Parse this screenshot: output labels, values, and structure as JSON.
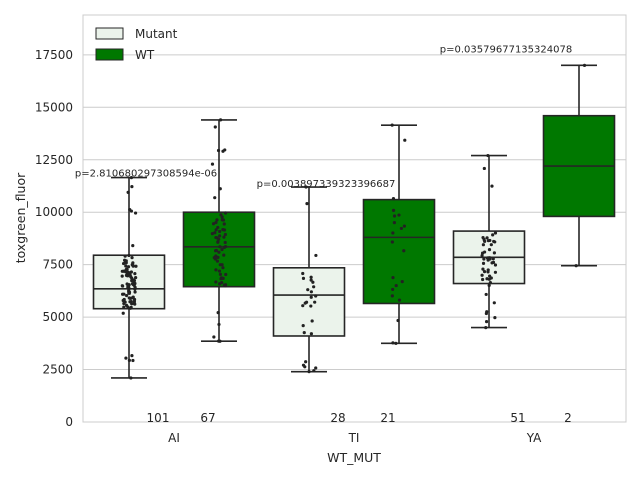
{
  "chart_data": {
    "type": "box",
    "xlabel": "WT_MUT",
    "ylabel": "toxgreen_fluor",
    "ylim": [
      0,
      19400
    ],
    "yticks": [
      0,
      2500,
      5000,
      7500,
      10000,
      12500,
      15000,
      17500
    ],
    "grid": true,
    "legend_position": "top-left",
    "categories": [
      "AI",
      "TI",
      "YA"
    ],
    "series": [
      {
        "name": "Mutant",
        "color": "#ebf3eb",
        "boxes": [
          {
            "whisker_low": 2100,
            "q1": 5400,
            "median": 6350,
            "q3": 7950,
            "whisker_high": 11650
          },
          {
            "whisker_low": 2400,
            "q1": 4100,
            "median": 6050,
            "q3": 7350,
            "whisker_high": 11200
          },
          {
            "whisker_low": 4500,
            "q1": 6600,
            "median": 7850,
            "q3": 9100,
            "whisker_high": 12700
          }
        ]
      },
      {
        "name": "WT",
        "color": "#007800",
        "boxes": [
          {
            "whisker_low": 3850,
            "q1": 6450,
            "median": 8350,
            "q3": 10000,
            "whisker_high": 14400
          },
          {
            "whisker_low": 3750,
            "q1": 5650,
            "median": 8800,
            "q3": 10600,
            "whisker_high": 14150
          },
          {
            "whisker_low": 7450,
            "q1": 9800,
            "median": 12200,
            "q3": 14600,
            "whisker_high": 17000
          }
        ]
      }
    ],
    "counts": [
      {
        "category": "AI",
        "mutant": "101",
        "wt": "67"
      },
      {
        "category": "TI",
        "mutant": "28",
        "wt": "21"
      },
      {
        "category": "YA",
        "mutant": "51",
        "wt": "2"
      }
    ],
    "annotations": [
      {
        "category": "AI",
        "text": "p=2.810680297308594e-06",
        "y": 11900
      },
      {
        "category": "TI",
        "text": "p=0.003897339323396687",
        "y": 11400
      },
      {
        "category": "YA",
        "text": "p=0.03579677135324078",
        "y": 17800
      }
    ],
    "points_per_box": [
      101,
      67,
      28,
      21,
      51,
      2
    ]
  }
}
